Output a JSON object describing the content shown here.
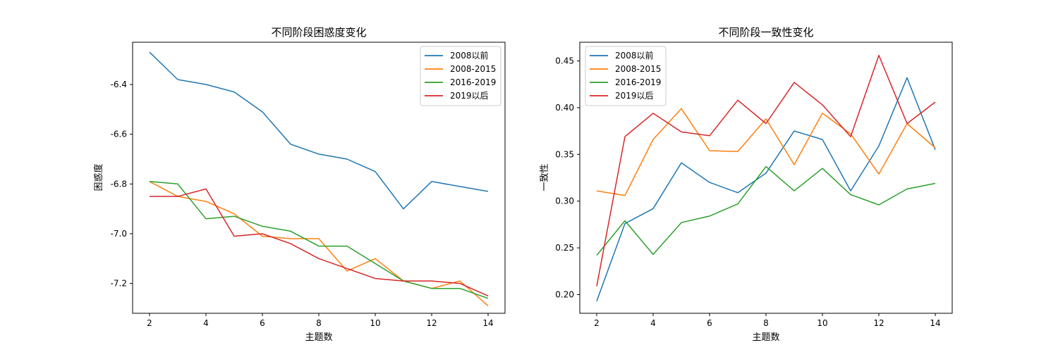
{
  "colors": {
    "blue": "#1f77b4",
    "orange": "#ff7f0e",
    "green": "#2ca02c",
    "red": "#d62728"
  },
  "chart_data": [
    {
      "type": "line",
      "title": "不同阶段困惑度变化",
      "xlabel": "主题数",
      "ylabel": "困惑度",
      "x": [
        2,
        3,
        4,
        5,
        6,
        7,
        8,
        9,
        10,
        11,
        12,
        13,
        14
      ],
      "xlim": [
        1.4,
        14.6
      ],
      "ylim": [
        -7.32,
        -6.23
      ],
      "xticks": [
        2,
        4,
        6,
        8,
        10,
        12,
        14
      ],
      "yticks": [
        -6.4,
        -6.6,
        -6.8,
        -7.0,
        -7.2
      ],
      "ytick_labels": [
        "-6.4",
        "-6.6",
        "-6.8",
        "-7.0",
        "-7.2"
      ],
      "legend_position": "top-right",
      "series": [
        {
          "name": "2008以前",
          "color": "#1f77b4",
          "values": [
            -6.27,
            -6.38,
            -6.4,
            -6.43,
            -6.51,
            -6.64,
            -6.68,
            -6.7,
            -6.75,
            -6.9,
            -6.79,
            -6.81,
            -6.83
          ]
        },
        {
          "name": "2008-2015",
          "color": "#ff7f0e",
          "values": [
            -6.79,
            -6.85,
            -6.87,
            -6.92,
            -7.01,
            -7.02,
            -7.02,
            -7.15,
            -7.1,
            -7.19,
            -7.22,
            -7.19,
            -7.29
          ]
        },
        {
          "name": "2016-2019",
          "color": "#2ca02c",
          "values": [
            -6.79,
            -6.8,
            -6.94,
            -6.93,
            -6.97,
            -6.99,
            -7.05,
            -7.05,
            -7.12,
            -7.19,
            -7.22,
            -7.22,
            -7.26
          ]
        },
        {
          "name": "2019以后",
          "color": "#d62728",
          "values": [
            -6.85,
            -6.85,
            -6.82,
            -7.01,
            -7.0,
            -7.04,
            -7.1,
            -7.14,
            -7.18,
            -7.19,
            -7.19,
            -7.2,
            -7.25
          ]
        }
      ]
    },
    {
      "type": "line",
      "title": "不同阶段一致性变化",
      "xlabel": "主题数",
      "ylabel": "一致性",
      "x": [
        2,
        3,
        4,
        5,
        6,
        7,
        8,
        9,
        10,
        11,
        12,
        13,
        14
      ],
      "xlim": [
        1.4,
        14.6
      ],
      "ylim": [
        0.18,
        0.47
      ],
      "xticks": [
        2,
        4,
        6,
        8,
        10,
        12,
        14
      ],
      "yticks": [
        0.2,
        0.25,
        0.3,
        0.35,
        0.4,
        0.45
      ],
      "ytick_labels": [
        "0.20",
        "0.25",
        "0.30",
        "0.35",
        "0.40",
        "0.45"
      ],
      "legend_position": "top-left",
      "series": [
        {
          "name": "2008以前",
          "color": "#1f77b4",
          "values": [
            0.193,
            0.276,
            0.292,
            0.341,
            0.32,
            0.309,
            0.33,
            0.375,
            0.366,
            0.311,
            0.359,
            0.432,
            0.355
          ]
        },
        {
          "name": "2008-2015",
          "color": "#ff7f0e",
          "values": [
            0.311,
            0.306,
            0.366,
            0.399,
            0.354,
            0.353,
            0.388,
            0.339,
            0.394,
            0.372,
            0.329,
            0.383,
            0.357
          ]
        },
        {
          "name": "2016-2019",
          "color": "#2ca02c",
          "values": [
            0.242,
            0.279,
            0.243,
            0.277,
            0.284,
            0.297,
            0.337,
            0.311,
            0.335,
            0.307,
            0.296,
            0.313,
            0.319
          ]
        },
        {
          "name": "2019以后",
          "color": "#d62728",
          "values": [
            0.209,
            0.369,
            0.394,
            0.374,
            0.37,
            0.408,
            0.383,
            0.427,
            0.403,
            0.369,
            0.456,
            0.383,
            0.406
          ]
        }
      ]
    }
  ]
}
